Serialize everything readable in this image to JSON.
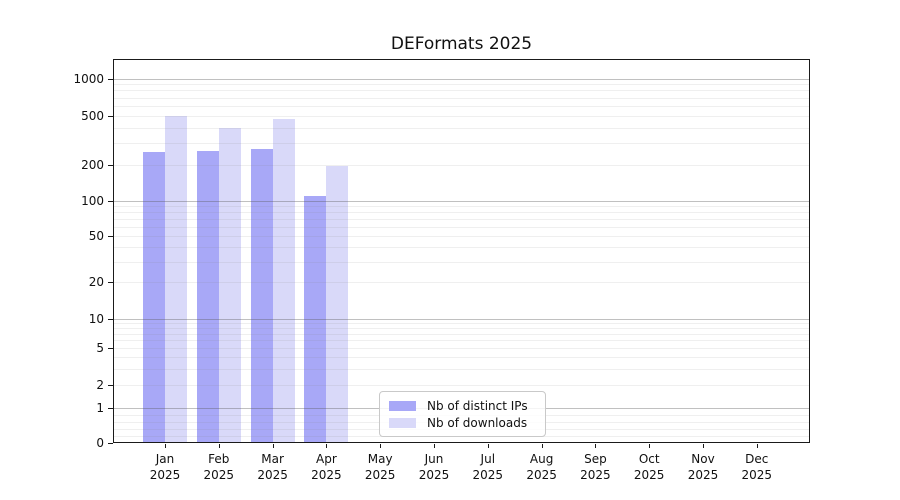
{
  "chart_data": {
    "type": "bar",
    "title": "DEFormats 2025",
    "xlabel": "",
    "ylabel": "",
    "yscale": "symlog",
    "ylim": [
      0,
      1500
    ],
    "grid": true,
    "legend_position": "lower center",
    "ytick_values": [
      0,
      1,
      2,
      5,
      10,
      20,
      50,
      100,
      200,
      500,
      1000
    ],
    "ytick_labels": [
      "0",
      "1",
      "2",
      "5",
      "10",
      "20",
      "50",
      "100",
      "200",
      "500",
      "1000"
    ],
    "minor_grid_values": [
      0.2,
      0.4,
      0.6,
      0.8,
      3,
      4,
      6,
      7,
      8,
      9,
      30,
      40,
      60,
      70,
      80,
      90,
      300,
      400,
      600,
      700,
      800,
      900
    ],
    "categories": [
      {
        "month": "Jan",
        "year": "2025"
      },
      {
        "month": "Feb",
        "year": "2025"
      },
      {
        "month": "Mar",
        "year": "2025"
      },
      {
        "month": "Apr",
        "year": "2025"
      },
      {
        "month": "May",
        "year": "2025"
      },
      {
        "month": "Jun",
        "year": "2025"
      },
      {
        "month": "Jul",
        "year": "2025"
      },
      {
        "month": "Aug",
        "year": "2025"
      },
      {
        "month": "Sep",
        "year": "2025"
      },
      {
        "month": "Oct",
        "year": "2025"
      },
      {
        "month": "Nov",
        "year": "2025"
      },
      {
        "month": "Dec",
        "year": "2025"
      }
    ],
    "series": [
      {
        "name": "Nb of distinct IPs",
        "slug": "distinct-ips",
        "color": "#a8a8f7",
        "values": [
          255,
          260,
          270,
          110,
          null,
          null,
          null,
          null,
          null,
          null,
          null,
          null
        ]
      },
      {
        "name": "Nb of downloads",
        "slug": "downloads",
        "color": "#d9d9f9",
        "values": [
          500,
          400,
          470,
          195,
          null,
          null,
          null,
          null,
          null,
          null,
          null,
          null
        ]
      }
    ]
  },
  "colors": {
    "axis": "#1a1a1a",
    "grid_minor": "#ececec",
    "grid_major": "#b5b5b5",
    "background": "#ffffff"
  }
}
